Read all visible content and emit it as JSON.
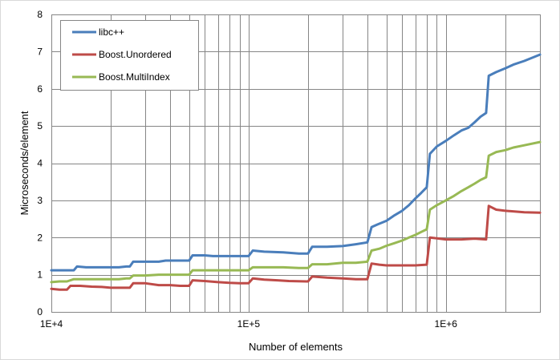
{
  "chart_data": {
    "type": "line",
    "title": "",
    "xlabel": "Number of elements",
    "ylabel": "Microseconds/element",
    "x_scale": "log",
    "xlim": [
      10000,
      3000000
    ],
    "ylim": [
      0,
      8
    ],
    "grid": "both",
    "legend_position": "top-left",
    "x_tick_labels": [
      "1E+4",
      "1E+5",
      "1E+6"
    ],
    "x_ticks": [
      10000,
      100000,
      1000000
    ],
    "y_ticks": [
      0,
      1,
      2,
      3,
      4,
      5,
      6,
      7,
      8
    ],
    "series": [
      {
        "name": "libc++",
        "color": "#4a7ebb",
        "points": [
          [
            10000,
            1.12
          ],
          [
            11000,
            1.12
          ],
          [
            12000,
            1.12
          ],
          [
            13000,
            1.12
          ],
          [
            13500,
            1.22
          ],
          [
            15000,
            1.2
          ],
          [
            18000,
            1.2
          ],
          [
            22000,
            1.2
          ],
          [
            24000,
            1.22
          ],
          [
            25000,
            1.22
          ],
          [
            26000,
            1.35
          ],
          [
            30000,
            1.35
          ],
          [
            35000,
            1.35
          ],
          [
            38000,
            1.38
          ],
          [
            45000,
            1.38
          ],
          [
            50000,
            1.38
          ],
          [
            52000,
            1.52
          ],
          [
            60000,
            1.52
          ],
          [
            66000,
            1.5
          ],
          [
            80000,
            1.5
          ],
          [
            100000,
            1.5
          ],
          [
            105000,
            1.65
          ],
          [
            120000,
            1.62
          ],
          [
            150000,
            1.6
          ],
          [
            180000,
            1.57
          ],
          [
            200000,
            1.57
          ],
          [
            210000,
            1.75
          ],
          [
            250000,
            1.75
          ],
          [
            300000,
            1.77
          ],
          [
            350000,
            1.82
          ],
          [
            400000,
            1.87
          ],
          [
            420000,
            2.28
          ],
          [
            450000,
            2.35
          ],
          [
            500000,
            2.45
          ],
          [
            550000,
            2.6
          ],
          [
            600000,
            2.72
          ],
          [
            650000,
            2.87
          ],
          [
            700000,
            3.05
          ],
          [
            750000,
            3.2
          ],
          [
            800000,
            3.35
          ],
          [
            830000,
            4.25
          ],
          [
            900000,
            4.45
          ],
          [
            1000000,
            4.6
          ],
          [
            1100000,
            4.75
          ],
          [
            1200000,
            4.88
          ],
          [
            1300000,
            4.95
          ],
          [
            1400000,
            5.1
          ],
          [
            1500000,
            5.25
          ],
          [
            1600000,
            5.35
          ],
          [
            1650000,
            6.35
          ],
          [
            1800000,
            6.45
          ],
          [
            2000000,
            6.55
          ],
          [
            2200000,
            6.65
          ],
          [
            2500000,
            6.75
          ],
          [
            3000000,
            6.92
          ]
        ]
      },
      {
        "name": "Boost.Unordered",
        "color": "#be4b48",
        "points": [
          [
            10000,
            0.62
          ],
          [
            11000,
            0.6
          ],
          [
            12000,
            0.6
          ],
          [
            12500,
            0.7
          ],
          [
            14000,
            0.7
          ],
          [
            16000,
            0.68
          ],
          [
            18000,
            0.67
          ],
          [
            20000,
            0.65
          ],
          [
            25000,
            0.65
          ],
          [
            26000,
            0.77
          ],
          [
            30000,
            0.77
          ],
          [
            35000,
            0.72
          ],
          [
            40000,
            0.72
          ],
          [
            45000,
            0.7
          ],
          [
            50000,
            0.7
          ],
          [
            52000,
            0.85
          ],
          [
            60000,
            0.83
          ],
          [
            70000,
            0.8
          ],
          [
            80000,
            0.78
          ],
          [
            90000,
            0.77
          ],
          [
            100000,
            0.77
          ],
          [
            105000,
            0.9
          ],
          [
            120000,
            0.87
          ],
          [
            140000,
            0.85
          ],
          [
            160000,
            0.83
          ],
          [
            200000,
            0.82
          ],
          [
            210000,
            0.95
          ],
          [
            250000,
            0.92
          ],
          [
            300000,
            0.9
          ],
          [
            350000,
            0.88
          ],
          [
            400000,
            0.88
          ],
          [
            420000,
            1.3
          ],
          [
            460000,
            1.27
          ],
          [
            500000,
            1.25
          ],
          [
            600000,
            1.25
          ],
          [
            700000,
            1.25
          ],
          [
            800000,
            1.27
          ],
          [
            830000,
            2.0
          ],
          [
            900000,
            1.98
          ],
          [
            1000000,
            1.95
          ],
          [
            1200000,
            1.95
          ],
          [
            1400000,
            1.97
          ],
          [
            1600000,
            1.95
          ],
          [
            1650000,
            2.85
          ],
          [
            1800000,
            2.75
          ],
          [
            2000000,
            2.72
          ],
          [
            2500000,
            2.68
          ],
          [
            3000000,
            2.67
          ]
        ]
      },
      {
        "name": "Boost.MultiIndex",
        "color": "#98b954",
        "points": [
          [
            10000,
            0.8
          ],
          [
            11000,
            0.82
          ],
          [
            12000,
            0.82
          ],
          [
            13000,
            0.88
          ],
          [
            15000,
            0.88
          ],
          [
            18000,
            0.88
          ],
          [
            22000,
            0.88
          ],
          [
            24000,
            0.9
          ],
          [
            25000,
            0.9
          ],
          [
            26000,
            0.98
          ],
          [
            30000,
            0.98
          ],
          [
            35000,
            1.0
          ],
          [
            40000,
            1.0
          ],
          [
            50000,
            1.0
          ],
          [
            52000,
            1.12
          ],
          [
            60000,
            1.12
          ],
          [
            70000,
            1.12
          ],
          [
            80000,
            1.12
          ],
          [
            90000,
            1.12
          ],
          [
            100000,
            1.12
          ],
          [
            105000,
            1.2
          ],
          [
            120000,
            1.2
          ],
          [
            150000,
            1.2
          ],
          [
            180000,
            1.18
          ],
          [
            200000,
            1.18
          ],
          [
            210000,
            1.28
          ],
          [
            250000,
            1.28
          ],
          [
            300000,
            1.32
          ],
          [
            350000,
            1.32
          ],
          [
            400000,
            1.35
          ],
          [
            420000,
            1.65
          ],
          [
            460000,
            1.7
          ],
          [
            500000,
            1.78
          ],
          [
            550000,
            1.85
          ],
          [
            600000,
            1.92
          ],
          [
            650000,
            2.0
          ],
          [
            700000,
            2.07
          ],
          [
            750000,
            2.15
          ],
          [
            800000,
            2.22
          ],
          [
            830000,
            2.75
          ],
          [
            900000,
            2.87
          ],
          [
            1000000,
            3.0
          ],
          [
            1100000,
            3.12
          ],
          [
            1200000,
            3.25
          ],
          [
            1300000,
            3.35
          ],
          [
            1400000,
            3.45
          ],
          [
            1500000,
            3.55
          ],
          [
            1600000,
            3.62
          ],
          [
            1650000,
            4.2
          ],
          [
            1800000,
            4.3
          ],
          [
            2000000,
            4.35
          ],
          [
            2200000,
            4.42
          ],
          [
            2500000,
            4.48
          ],
          [
            3000000,
            4.57
          ]
        ]
      }
    ]
  }
}
